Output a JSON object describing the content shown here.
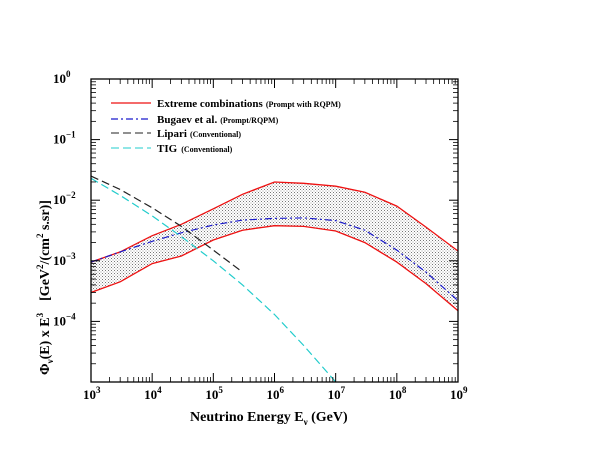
{
  "chart_data": {
    "type": "line",
    "xlabel": {
      "text": "Neutrino Energy  E",
      "subscript": "ν",
      "unit": " (GeV)"
    },
    "ylabel": {
      "phi": "Φ",
      "phi_sub": "ν",
      "middle": "(E) x E",
      "exp": "3",
      "units_left": "[GeV",
      "units_exp": "2",
      "units_mid": "/(cm",
      "units_exp2": "2",
      "units_right": " s.sr)]"
    },
    "xscale": "log",
    "yscale": "log",
    "xlim": [
      1000,
      1000000000
    ],
    "ylim": [
      1e-05,
      1
    ],
    "x_ticks": [
      {
        "value": 1000,
        "base": "10",
        "exp": "3"
      },
      {
        "value": 10000,
        "base": "10",
        "exp": "4"
      },
      {
        "value": 100000,
        "base": "10",
        "exp": "5"
      },
      {
        "value": 1000000,
        "base": "10",
        "exp": "6"
      },
      {
        "value": 10000000,
        "base": "10",
        "exp": "7"
      },
      {
        "value": 100000000,
        "base": "10",
        "exp": "8"
      },
      {
        "value": 1000000000,
        "base": "10",
        "exp": "9"
      }
    ],
    "y_ticks": [
      {
        "value": 1,
        "base": "10",
        "exp": "0"
      },
      {
        "value": 0.1,
        "base": "10",
        "exp": "−1"
      },
      {
        "value": 0.01,
        "base": "10",
        "exp": "−2"
      },
      {
        "value": 0.001,
        "base": "10",
        "exp": "−3"
      },
      {
        "value": 0.0001,
        "base": "10",
        "exp": "−4"
      }
    ],
    "legend_position": "top-left",
    "series": [
      {
        "name": "Extreme combinations",
        "note": "(Prompt with RQPM)",
        "color": "#ee1111",
        "style": "solid",
        "upper": {
          "x": [
            1000,
            3000,
            10000,
            30000,
            100000,
            300000,
            1000000,
            3000000,
            10000000,
            30000000,
            100000000,
            300000000,
            1000000000
          ],
          "y": [
            0.00095,
            0.0014,
            0.0026,
            0.004,
            0.0072,
            0.0125,
            0.02,
            0.019,
            0.017,
            0.0135,
            0.008,
            0.0036,
            0.00145
          ]
        },
        "lower": {
          "x": [
            1000,
            3000,
            10000,
            30000,
            100000,
            300000,
            1000000,
            3000000,
            10000000,
            30000000,
            100000000,
            300000000,
            1000000000
          ],
          "y": [
            0.0003,
            0.00045,
            0.0009,
            0.0012,
            0.0022,
            0.0032,
            0.0038,
            0.0037,
            0.0031,
            0.002,
            0.00095,
            0.00042,
            0.00015
          ]
        }
      },
      {
        "name": "Bugaev et al.",
        "note": "(Prompt/RQPM)",
        "color": "#1a1acc",
        "style": "dash-dot",
        "x": [
          1000,
          3000,
          10000,
          30000,
          100000,
          300000,
          1000000,
          3000000,
          10000000,
          30000000,
          100000000,
          300000000,
          1000000000
        ],
        "y": [
          0.00095,
          0.0014,
          0.0021,
          0.0029,
          0.0039,
          0.0047,
          0.005,
          0.0051,
          0.0046,
          0.0032,
          0.0015,
          0.00065,
          0.00022
        ]
      },
      {
        "name": "Lipari",
        "note": "(Conventional)",
        "color": "#222222",
        "style": "dashed",
        "x": [
          1000,
          3000,
          10000,
          30000,
          100000,
          300000
        ],
        "y": [
          0.025,
          0.015,
          0.0075,
          0.0037,
          0.0015,
          0.00065
        ]
      },
      {
        "name": "TIG",
        "note": "(Conventional)",
        "color": "#22cccc",
        "style": "dashed",
        "x": [
          1000,
          3000,
          10000,
          30000,
          100000,
          300000,
          1000000,
          3000000,
          10000000
        ],
        "y": [
          0.023,
          0.012,
          0.0055,
          0.0025,
          0.001,
          0.0004,
          0.00013,
          4e-05,
          1e-05
        ]
      }
    ]
  }
}
